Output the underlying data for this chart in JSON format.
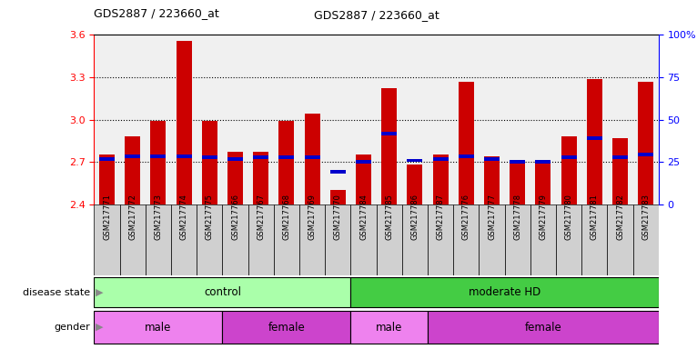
{
  "title": "GDS2887 / 223660_at",
  "samples": [
    "GSM217771",
    "GSM217772",
    "GSM217773",
    "GSM217774",
    "GSM217775",
    "GSM217766",
    "GSM217767",
    "GSM217768",
    "GSM217769",
    "GSM217770",
    "GSM217784",
    "GSM217785",
    "GSM217786",
    "GSM217787",
    "GSM217776",
    "GSM217777",
    "GSM217778",
    "GSM217779",
    "GSM217780",
    "GSM217781",
    "GSM217782",
    "GSM217783"
  ],
  "red_values": [
    2.75,
    2.88,
    2.99,
    3.56,
    2.99,
    2.77,
    2.77,
    2.99,
    3.04,
    2.5,
    2.75,
    3.22,
    2.68,
    2.75,
    3.27,
    2.74,
    2.7,
    2.71,
    2.88,
    3.29,
    2.87,
    3.27
  ],
  "blue_values": [
    2.72,
    2.74,
    2.74,
    2.74,
    2.73,
    2.72,
    2.73,
    2.73,
    2.73,
    2.63,
    2.7,
    2.9,
    2.71,
    2.72,
    2.74,
    2.72,
    2.7,
    2.7,
    2.73,
    2.87,
    2.73,
    2.75
  ],
  "ymin": 2.4,
  "ymax": 3.6,
  "yticks": [
    2.4,
    2.7,
    3.0,
    3.3,
    3.6
  ],
  "right_ytick_percents": [
    0,
    25,
    50,
    75,
    100
  ],
  "right_ytick_labels": [
    "0",
    "25",
    "50",
    "75",
    "100%"
  ],
  "groups": [
    {
      "label": "control",
      "color": "#AAFFAA",
      "start": 0,
      "end": 10
    },
    {
      "label": "moderate HD",
      "color": "#44CC44",
      "start": 10,
      "end": 22
    }
  ],
  "genders": [
    {
      "label": "male",
      "color": "#EE82EE",
      "start": 0,
      "end": 5
    },
    {
      "label": "female",
      "color": "#CC44CC",
      "start": 5,
      "end": 10
    },
    {
      "label": "male",
      "color": "#EE82EE",
      "start": 10,
      "end": 13
    },
    {
      "label": "female",
      "color": "#CC44CC",
      "start": 13,
      "end": 22
    }
  ],
  "bar_color": "#CC0000",
  "blue_color": "#0000CC",
  "sample_bg_color": "#D0D0D0",
  "chart_bg_color": "#F0F0F0"
}
